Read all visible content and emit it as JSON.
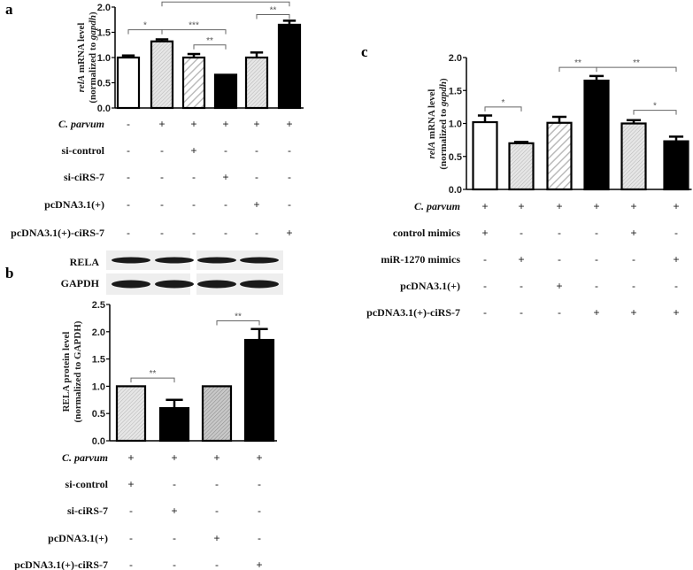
{
  "chart_data": [
    {
      "panel": "a",
      "type": "bar",
      "ylabel": [
        "relA",
        " mRNA level",
        "(normalized to ",
        "gapdh",
        ")"
      ],
      "ylim": [
        0,
        2.0
      ],
      "yticks": [
        "0.0",
        "0.5",
        "1.0",
        "1.5",
        "2.0"
      ],
      "values": [
        1.0,
        1.32,
        1.0,
        0.66,
        1.0,
        1.65
      ],
      "errors": [
        0.04,
        0.04,
        0.07,
        0.0,
        0.1,
        0.08
      ],
      "fills": [
        "white",
        "dots",
        "hatch",
        "black",
        "dots",
        "black"
      ],
      "significance": [
        {
          "from": 0,
          "to": 1,
          "level": 1.55,
          "label": "*"
        },
        {
          "from": 1,
          "to": 3,
          "level": 1.55,
          "label": "***"
        },
        {
          "from": 2,
          "to": 3,
          "level": 1.25,
          "label": "**"
        },
        {
          "from": 4,
          "to": 5,
          "level": 1.85,
          "label": "**"
        },
        {
          "from": 1,
          "to": 5,
          "level": 2.1,
          "label": "*"
        }
      ],
      "conditions": [
        {
          "label": "C. parvum",
          "italic": true,
          "signs": [
            "-",
            "+",
            "+",
            "+",
            "+",
            "+"
          ]
        },
        {
          "label": "si-control",
          "signs": [
            "-",
            "-",
            "+",
            "-",
            "-",
            "-"
          ]
        },
        {
          "label": "si-ciRS-7",
          "signs": [
            "-",
            "-",
            "-",
            "+",
            "-",
            "-"
          ]
        },
        {
          "label": "pcDNA3.1(+)",
          "signs": [
            "-",
            "-",
            "-",
            "-",
            "+",
            "-"
          ]
        },
        {
          "label": "pcDNA3.1(+)-ciRS-7",
          "signs": [
            "-",
            "-",
            "-",
            "-",
            "-",
            "+"
          ]
        }
      ]
    },
    {
      "panel": "b",
      "type": "bar",
      "blot_labels": [
        "RELA",
        "GAPDH"
      ],
      "ylabel": [
        "RELA protein  level",
        "",
        "(normalized to GAPDH)",
        "",
        ""
      ],
      "ylim": [
        0,
        2.5
      ],
      "yticks": [
        "0.0",
        "0.5",
        "1.0",
        "1.5",
        "2.0",
        "2.5"
      ],
      "values": [
        1.0,
        0.6,
        1.0,
        1.85
      ],
      "errors": [
        0.0,
        0.15,
        0.0,
        0.2
      ],
      "fills": [
        "dots",
        "black",
        "gray",
        "black"
      ],
      "significance": [
        {
          "from": 0,
          "to": 1,
          "level": 1.15,
          "label": "**"
        },
        {
          "from": 2,
          "to": 3,
          "level": 2.2,
          "label": "**"
        }
      ],
      "conditions": [
        {
          "label": "C. parvum",
          "italic": true,
          "signs": [
            "+",
            "+",
            "+",
            "+"
          ]
        },
        {
          "label": "si-control",
          "signs": [
            "+",
            "-",
            "-",
            "-"
          ]
        },
        {
          "label": "si-ciRS-7",
          "signs": [
            "-",
            "+",
            "-",
            "-"
          ]
        },
        {
          "label": "pcDNA3.1(+)",
          "signs": [
            "-",
            "-",
            "+",
            "-"
          ]
        },
        {
          "label": "pcDNA3.1(+)-ciRS-7",
          "signs": [
            "-",
            "-",
            "-",
            "+"
          ]
        }
      ]
    },
    {
      "panel": "c",
      "type": "bar",
      "ylabel": [
        "relA",
        "  mRNA level",
        "(normalized to ",
        "gapdh",
        ")"
      ],
      "ylim": [
        0,
        2.0
      ],
      "yticks": [
        "0.0",
        "0.5",
        "1.0",
        "1.5",
        "2.0"
      ],
      "values": [
        1.02,
        0.7,
        1.01,
        1.65,
        1.0,
        0.73
      ],
      "errors": [
        0.1,
        0.02,
        0.09,
        0.07,
        0.05,
        0.07
      ],
      "fills": [
        "white",
        "dots",
        "hatch",
        "black",
        "dots",
        "black"
      ],
      "significance": [
        {
          "from": 0,
          "to": 1,
          "level": 1.25,
          "label": "*"
        },
        {
          "from": 2,
          "to": 3,
          "level": 1.85,
          "label": "**"
        },
        {
          "from": 3,
          "to": 5,
          "level": 1.85,
          "label": "**"
        },
        {
          "from": 4,
          "to": 5,
          "level": 1.2,
          "label": "*"
        }
      ],
      "conditions": [
        {
          "label": "C. parvum",
          "italic": true,
          "signs": [
            "+",
            "+",
            "+",
            "+",
            "+",
            "+"
          ]
        },
        {
          "label": "control mimics",
          "signs": [
            "+",
            "-",
            "-",
            "-",
            "+",
            "-"
          ]
        },
        {
          "label": "miR-1270 mimics",
          "signs": [
            "-",
            "+",
            "-",
            "-",
            "-",
            "+"
          ]
        },
        {
          "label": "pcDNA3.1(+)",
          "signs": [
            "-",
            "-",
            "+",
            "-",
            "-",
            "-"
          ]
        },
        {
          "label": "pcDNA3.1(+)-ciRS-7",
          "signs": [
            "-",
            "-",
            "-",
            "+",
            "+",
            "+"
          ]
        }
      ]
    }
  ]
}
